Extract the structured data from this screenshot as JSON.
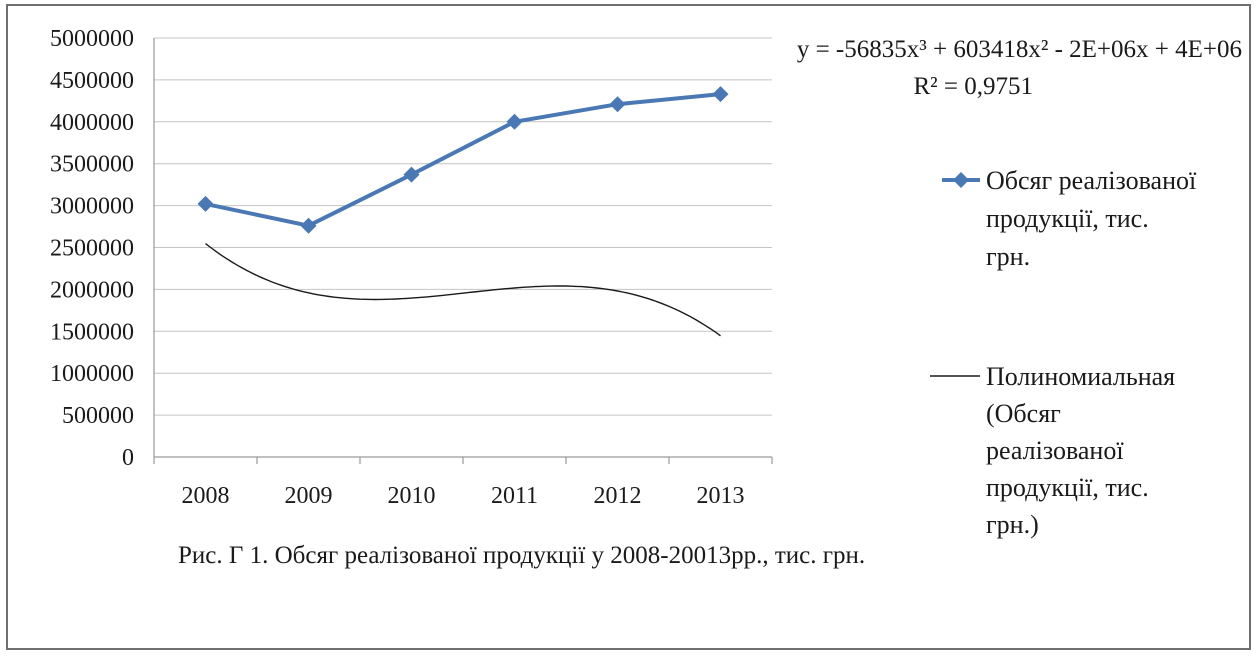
{
  "chart_data": {
    "type": "line",
    "categories": [
      "2008",
      "2009",
      "2010",
      "2011",
      "2012",
      "2013"
    ],
    "series": [
      {
        "name": "Обсяг реалізованої продукції, тис. грн.",
        "values": [
          3020000,
          2760000,
          3370000,
          4000000,
          4210000,
          4330000
        ],
        "color": "#4a78b4",
        "marker": "diamond"
      }
    ],
    "trendline": {
      "type": "polynomial",
      "order": 3,
      "name": "Полиномиальная (Обсяг реалізованої продукції, тис. грн.)",
      "coefficients": {
        "a3": -56835,
        "a2": 603418,
        "a1": -2000000,
        "a0": 4000000
      },
      "equation_text": "y = -56835x³ + 603418x² - 2E+06x + 4E+06",
      "r2_text": "R² = 0,9751",
      "color": "#1a1a1a"
    },
    "y_ticks": [
      "0",
      "500000",
      "1000000",
      "1500000",
      "2000000",
      "2500000",
      "3000000",
      "3500000",
      "4000000",
      "4500000",
      "5000000"
    ],
    "ylim": [
      0,
      5000000
    ],
    "grid": true,
    "legend_position": "right",
    "legend_lines": [
      [
        "Обсяг реалізованої",
        "продукції, тис.",
        "грн."
      ],
      [
        "Полиномиальная",
        "(Обсяг",
        "реалізованої",
        "продукції, тис.",
        "грн.)"
      ]
    ]
  },
  "caption": "Рис. Г 1. Обсяг реалізованої продукції у 2008-20013рр.,  тис. грн."
}
